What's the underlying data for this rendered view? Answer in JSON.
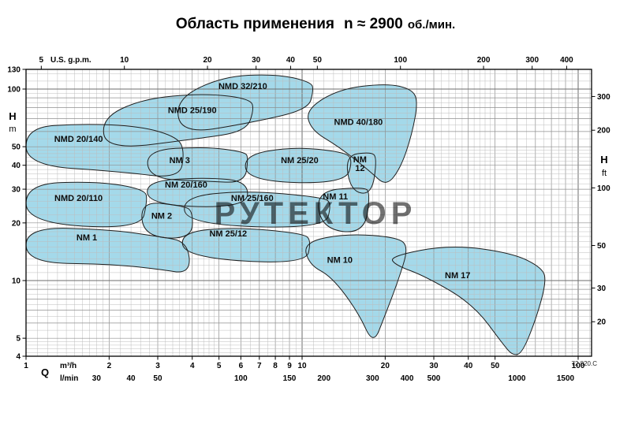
{
  "title": {
    "main": "Область применения",
    "speed": "n ≈ 2900",
    "unit": "об./мин."
  },
  "watermark": "РУТЕКТОР",
  "doc_code": "72.820.C",
  "axes": {
    "top": {
      "label": "U.S. g.p.m.",
      "ticks": [
        5,
        10,
        20,
        30,
        40,
        50,
        100,
        200,
        300,
        400
      ]
    },
    "left": {
      "label": "H",
      "unit": "m",
      "ticks": [
        130,
        100,
        50,
        40,
        30,
        20,
        10,
        5,
        4
      ]
    },
    "right": {
      "label": "H",
      "unit": "ft",
      "ticks": [
        300,
        200,
        100,
        50,
        30,
        20
      ]
    },
    "bottom_m3h": {
      "label": "Q",
      "unit": "m³/h",
      "ticks": [
        1,
        2,
        3,
        4,
        5,
        6,
        7,
        8,
        9,
        10,
        20,
        30,
        40,
        50,
        100
      ]
    },
    "bottom_lmin": {
      "unit": "l/min",
      "ticks": [
        30,
        40,
        50,
        100,
        150,
        200,
        300,
        400,
        500,
        1000,
        1500
      ]
    }
  },
  "colors": {
    "region_fill": "#a4d9ea",
    "region_stroke": "#1f1f1f",
    "grid_minor": "#bdbdbd",
    "grid_major": "#8f8f8f",
    "grid_decade": "#6e6e6e",
    "axis": "#000000",
    "watermark": "#8d8d8d"
  },
  "chart_data": {
    "type": "area",
    "title": "Область применения n ≈ 2900 об./мин.",
    "xlabel": "Q",
    "ylabel": "H",
    "x_units": [
      "m³/h",
      "l/min",
      "U.S. g.p.m."
    ],
    "y_units": [
      "m",
      "ft"
    ],
    "x_scale": "log",
    "y_scale": "log",
    "x_range_m3h": [
      1,
      112
    ],
    "y_range_m": [
      4,
      127
    ],
    "grid": true,
    "legend": "none",
    "regions": [
      {
        "name": "NMD 32/210",
        "label_at": [
          6.1,
          100
        ],
        "outline": [
          [
            3.47,
            88
          ],
          [
            5.1,
            116
          ],
          [
            8.0,
            120
          ],
          [
            10.8,
            109
          ],
          [
            11.0,
            98
          ],
          [
            10.5,
            78
          ],
          [
            6.6,
            67
          ],
          [
            3.66,
            58
          ]
        ]
      },
      {
        "name": "NMD 25/190",
        "label_at": [
          4.0,
          75
        ],
        "outline": [
          [
            1.87,
            70
          ],
          [
            2.63,
            89
          ],
          [
            4.45,
            95
          ],
          [
            6.5,
            89
          ],
          [
            6.7,
            78
          ],
          [
            6.26,
            60
          ],
          [
            4.17,
            55
          ],
          [
            1.96,
            48
          ]
        ]
      },
      {
        "name": "NMD 40/180",
        "label_at": [
          16,
          65
        ],
        "outline": [
          [
            10.3,
            78
          ],
          [
            13.6,
            100
          ],
          [
            20.2,
            107
          ],
          [
            25.0,
            100
          ],
          [
            26.3,
            86
          ],
          [
            25.0,
            58
          ],
          [
            22.8,
            39
          ],
          [
            20.2,
            31
          ],
          [
            17.7,
            37
          ],
          [
            13.6,
            50
          ],
          [
            10.8,
            61
          ]
        ]
      },
      {
        "name": "NMD 20/140",
        "label_at": [
          1.55,
          53
        ],
        "outline": [
          [
            1,
            63
          ],
          [
            1.6,
            66
          ],
          [
            2.6,
            64
          ],
          [
            3.55,
            56
          ],
          [
            3.75,
            47
          ],
          [
            3.6,
            34
          ],
          [
            2.2,
            37
          ],
          [
            1,
            40
          ]
        ]
      },
      {
        "name": "NM 3",
        "label_at": [
          3.6,
          41
        ],
        "outline": [
          [
            2.72,
            48
          ],
          [
            4.45,
            50
          ],
          [
            6.18,
            47
          ],
          [
            6.39,
            44
          ],
          [
            6.2,
            32.3
          ],
          [
            4.5,
            33
          ],
          [
            2.8,
            34
          ]
        ]
      },
      {
        "name": "NM 25/20",
        "label_at": [
          9.8,
          41
        ],
        "outline": [
          [
            6.1,
            45
          ],
          [
            9.2,
            50
          ],
          [
            14.1,
            47
          ],
          [
            15.3,
            43
          ],
          [
            14.3,
            32
          ],
          [
            6.4,
            33
          ]
        ]
      },
      {
        "name": "NM 12",
        "label_lines": [
          "NM",
          "12"
        ],
        "label_at": [
          16.2,
          41.5
        ],
        "outline": [
          [
            14.3,
            45
          ],
          [
            17.7,
            47
          ],
          [
            18.7,
            44
          ],
          [
            17.9,
            28
          ],
          [
            15.0,
            29.3
          ]
        ]
      },
      {
        "name": "NM 20/160",
        "label_at": [
          3.8,
          30.6
        ],
        "outline": [
          [
            2.7,
            33
          ],
          [
            4.45,
            34.6
          ],
          [
            6.39,
            33
          ],
          [
            6.3,
            24
          ],
          [
            2.81,
            24.7
          ]
        ]
      },
      {
        "name": "NMD 20/110",
        "label_at": [
          1.55,
          26
        ],
        "outline": [
          [
            1,
            32
          ],
          [
            1.8,
            33
          ],
          [
            2.7,
            30
          ],
          [
            2.75,
            26
          ],
          [
            2.6,
            18.5
          ],
          [
            1,
            20
          ]
        ]
      },
      {
        "name": "NM 25/160",
        "label_at": [
          6.6,
          26
        ],
        "outline": [
          [
            3.66,
            27.2
          ],
          [
            6.18,
            29.6
          ],
          [
            11.9,
            27.2
          ],
          [
            12.8,
            25.3
          ],
          [
            12.1,
            18.6
          ],
          [
            3.85,
            19.6
          ]
        ]
      },
      {
        "name": "NM 11",
        "label_at": [
          13.2,
          26.5
        ],
        "outline": [
          [
            11.2,
            29.3
          ],
          [
            16.6,
            30.8
          ],
          [
            17.7,
            28.9
          ],
          [
            16.8,
            17.5
          ],
          [
            11.8,
            18.6
          ]
        ]
      },
      {
        "name": "NM 2",
        "label_at": [
          3.1,
          21
        ],
        "outline": [
          [
            2.6,
            26
          ],
          [
            3.66,
            24.6
          ],
          [
            4.03,
            23.2
          ],
          [
            3.98,
            16.4
          ],
          [
            2.66,
            17
          ]
        ]
      },
      {
        "name": "NM 25/12",
        "label_at": [
          5.4,
          17
        ],
        "outline": [
          [
            3.61,
            17.9
          ],
          [
            5.79,
            19
          ],
          [
            10.1,
            17.6
          ],
          [
            10.8,
            16.2
          ],
          [
            10.3,
            12.1
          ],
          [
            3.78,
            13.2
          ]
        ]
      },
      {
        "name": "NM 1",
        "label_at": [
          1.66,
          16.2
        ],
        "outline": [
          [
            1,
            19
          ],
          [
            2,
            18.5
          ],
          [
            3,
            17
          ],
          [
            3.85,
            16
          ],
          [
            3.95,
            10.8
          ],
          [
            3,
            11.5
          ],
          [
            2,
            12.2
          ],
          [
            1,
            12.4
          ]
        ]
      },
      {
        "name": "NM 10",
        "label_at": [
          13.7,
          12.4
        ],
        "outline": [
          [
            10.1,
            15.9
          ],
          [
            14.6,
            17.6
          ],
          [
            22.3,
            16.8
          ],
          [
            24.3,
            14.9
          ],
          [
            22.3,
            10
          ],
          [
            19.9,
            6.5
          ],
          [
            18.1,
            4.6
          ],
          [
            16,
            6.8
          ],
          [
            12.8,
            10.5
          ],
          [
            10.6,
            12.1
          ]
        ]
      },
      {
        "name": "NM 17",
        "label_at": [
          36.6,
          10.3
        ],
        "outline": [
          [
            20.9,
            13.4
          ],
          [
            34.3,
            15.4
          ],
          [
            58.1,
            13.9
          ],
          [
            74.5,
            11.6
          ],
          [
            76.5,
            9.8
          ],
          [
            70.9,
            6.5
          ],
          [
            62.9,
            4.2
          ],
          [
            58.1,
            4.05
          ],
          [
            53.7,
            4.6
          ],
          [
            41.8,
            7.5
          ],
          [
            28.1,
            10.5
          ],
          [
            21.6,
            12.1
          ]
        ]
      }
    ]
  }
}
